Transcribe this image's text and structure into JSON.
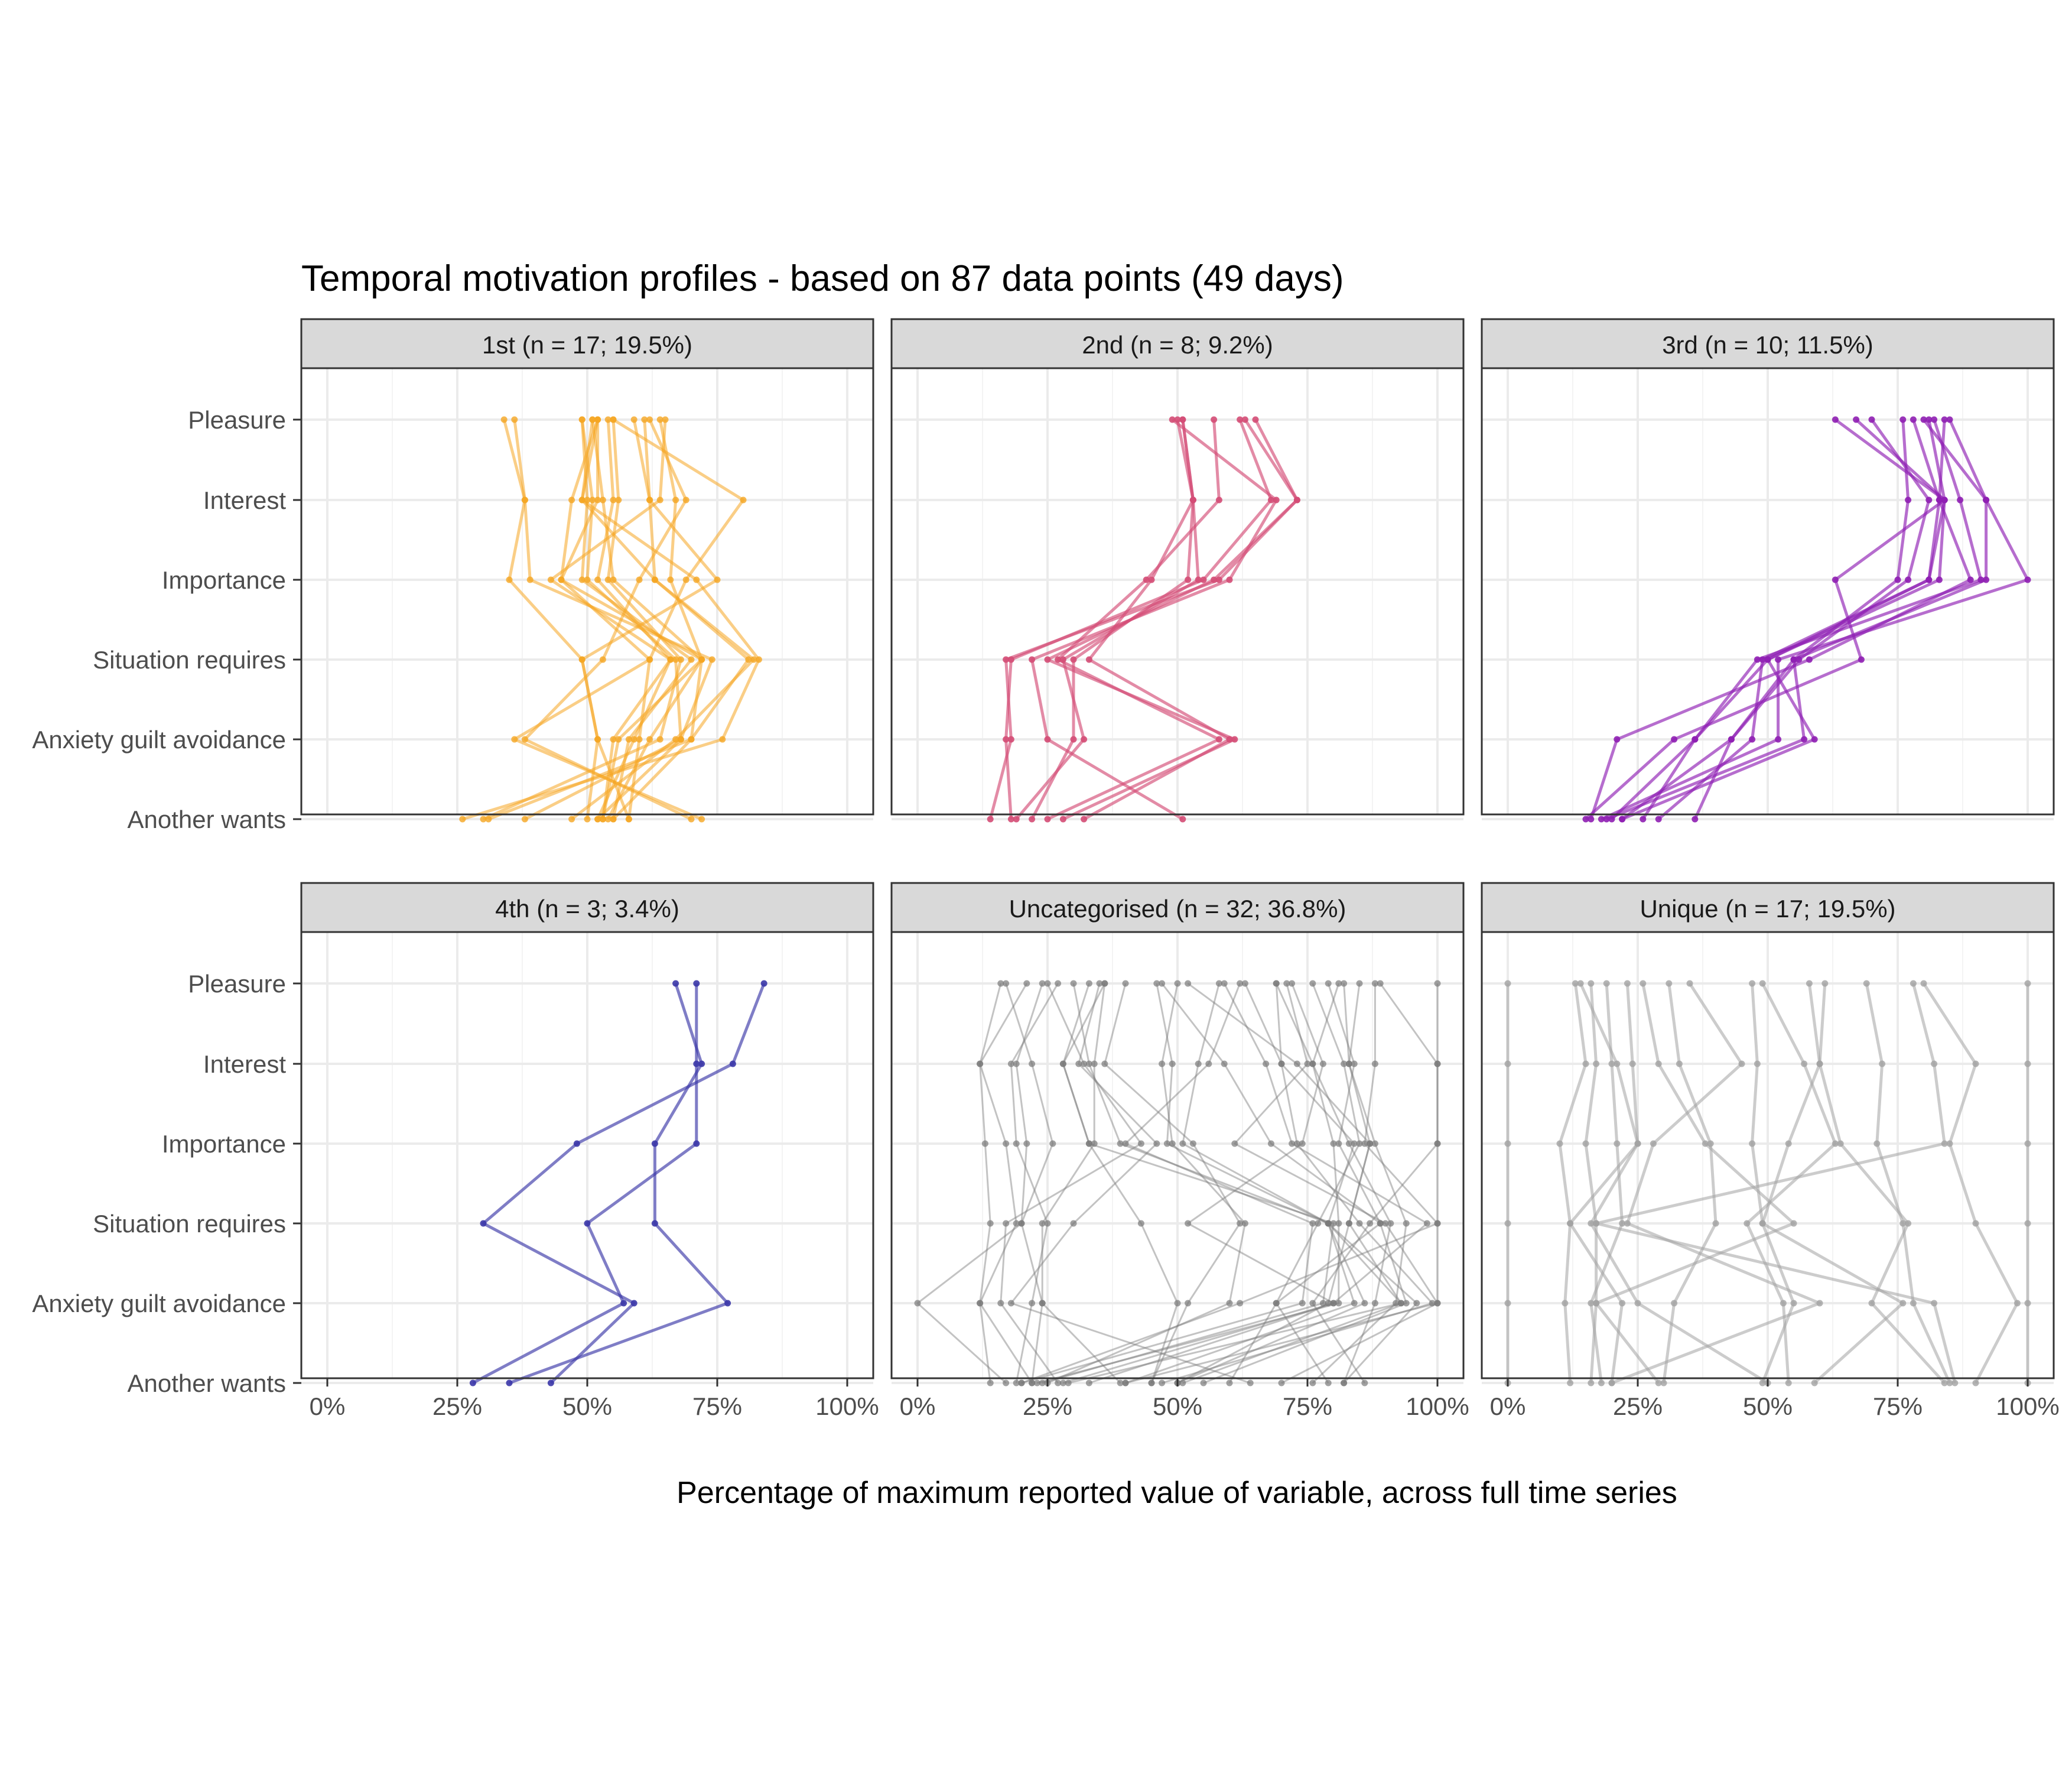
{
  "chart_data": {
    "type": "line",
    "title": "Temporal motivation profiles - based on 87 data points (49 days)",
    "xlabel": "Percentage of maximum reported value of variable, across full time series",
    "ylabel": "",
    "xlim": [
      0,
      100
    ],
    "x_ticks": [
      "0%",
      "25%",
      "50%",
      "75%",
      "100%"
    ],
    "x_tick_values": [
      0,
      25,
      50,
      75,
      100
    ],
    "y_categories": [
      "Pleasure",
      "Interest",
      "Importance",
      "Situation requires",
      "Anxiety guilt avoidance",
      "Another wants"
    ],
    "grid": true,
    "colors": {
      "panel_strip": "#d9d9d9",
      "grid": "#ebebeb"
    },
    "panels": [
      {
        "label": "1st (n = 17; 19.5%)",
        "color": "#f5a623",
        "series": [
          [
            51,
            53,
            55,
            72,
            56,
            53
          ],
          [
            54,
            55,
            52,
            66,
            59,
            52
          ],
          [
            49,
            50,
            49,
            70,
            58,
            55
          ],
          [
            52,
            52,
            45,
            72,
            62,
            54
          ],
          [
            36,
            38,
            35,
            49,
            52,
            50
          ],
          [
            52,
            47,
            45,
            62,
            60,
            58
          ],
          [
            55,
            56,
            54,
            68,
            64,
            30
          ],
          [
            59,
            62,
            63,
            81,
            70,
            55
          ],
          [
            64,
            67,
            66,
            72,
            70,
            31
          ],
          [
            65,
            64,
            43,
            66,
            55,
            53
          ],
          [
            34,
            38,
            39,
            74,
            68,
            52
          ],
          [
            49,
            51,
            50,
            67,
            68,
            38
          ],
          [
            52,
            49,
            71,
            83,
            76,
            26
          ],
          [
            51,
            49,
            63,
            82,
            67,
            47
          ],
          [
            61,
            62,
            75,
            49,
            52,
            58
          ],
          [
            62,
            69,
            60,
            53,
            38,
            70
          ],
          [
            55,
            80,
            69,
            62,
            36,
            72
          ]
        ]
      },
      {
        "label": "2nd (n = 8; 9.2%)",
        "color": "#d44d76",
        "series": [
          [
            51,
            53,
            54,
            28,
            32,
            19
          ],
          [
            51,
            53,
            52,
            30,
            30,
            22
          ],
          [
            63,
            73,
            58,
            17,
            18,
            14
          ],
          [
            62,
            68,
            55,
            18,
            17,
            18
          ],
          [
            50,
            53,
            45,
            33,
            60,
            32
          ],
          [
            57,
            58,
            44,
            27,
            58,
            25
          ],
          [
            65,
            73,
            57,
            25,
            61,
            28
          ],
          [
            49,
            69,
            60,
            22,
            25,
            51
          ]
        ]
      },
      {
        "label": "3rd (n = 10; 11.5%)",
        "color": "#8f1fb3",
        "series": [
          [
            81,
            84,
            83,
            50,
            59,
            22
          ],
          [
            78,
            83,
            81,
            49,
            47,
            29
          ],
          [
            80,
            92,
            92,
            55,
            57,
            19
          ],
          [
            82,
            87,
            91,
            48,
            36,
            20
          ],
          [
            85,
            92,
            100,
            52,
            52,
            18
          ],
          [
            76,
            77,
            75,
            55,
            43,
            22
          ],
          [
            84,
            83,
            89,
            58,
            21,
            16
          ],
          [
            63,
            84,
            63,
            68,
            32,
            15
          ],
          [
            67,
            84,
            81,
            50,
            36,
            26
          ],
          [
            70,
            81,
            77,
            56,
            43,
            36
          ]
        ]
      },
      {
        "label": "4th (n = 3; 3.4%)",
        "color": "#3b37a8",
        "series": [
          [
            71,
            71,
            71,
            50,
            57,
            28
          ],
          [
            67,
            72,
            63,
            63,
            77,
            35
          ],
          [
            84,
            78,
            48,
            30,
            59,
            43
          ]
        ]
      },
      {
        "label": "Uncategorised (n = 32; 36.8%)",
        "color": "#7a7a7a",
        "series": [
          [
            16,
            12,
            13,
            14,
            12,
            14
          ],
          [
            24,
            19,
            21,
            20,
            24,
            22
          ],
          [
            27,
            18,
            19,
            25,
            22,
            19
          ],
          [
            30,
            33,
            39,
            79,
            96,
            82
          ],
          [
            33,
            28,
            33,
            80,
            78,
            24
          ],
          [
            46,
            49,
            48,
            79,
            84,
            40
          ],
          [
            50,
            47,
            49,
            63,
            60,
            25
          ],
          [
            62,
            56,
            40,
            76,
            74,
            20
          ],
          [
            69,
            70,
            73,
            85,
            99,
            47
          ],
          [
            82,
            83,
            87,
            83,
            93,
            29
          ],
          [
            88,
            88,
            86,
            100,
            62,
            20
          ],
          [
            35,
            31,
            46,
            30,
            18,
            64
          ],
          [
            25,
            32,
            43,
            17,
            16,
            27
          ],
          [
            47,
            59,
            68,
            89,
            69,
            79
          ],
          [
            36,
            28,
            33,
            43,
            50,
            45
          ],
          [
            40,
            36,
            53,
            62,
            52,
            45
          ],
          [
            69,
            76,
            80,
            81,
            81,
            23
          ],
          [
            52,
            73,
            87,
            83,
            79,
            50
          ],
          [
            59,
            67,
            72,
            98,
            80,
            28
          ],
          [
            63,
            70,
            84,
            79,
            93,
            51
          ],
          [
            71,
            75,
            61,
            90,
            100,
            40
          ],
          [
            72,
            78,
            74,
            52,
            80,
            33
          ],
          [
            81,
            76,
            83,
            91,
            88,
            82
          ],
          [
            85,
            83,
            88,
            94,
            92,
            76
          ],
          [
            89,
            100,
            100,
            87,
            76,
            86
          ],
          [
            100,
            100,
            100,
            100,
            100,
            70
          ],
          [
            17,
            22,
            26,
            20,
            0,
            17
          ],
          [
            21,
            12,
            17,
            19,
            12,
            22
          ],
          [
            76,
            82,
            85,
            77,
            69,
            60
          ],
          [
            36,
            34,
            34,
            24,
            24,
            39
          ],
          [
            58,
            54,
            51,
            79,
            86,
            50
          ],
          [
            79,
            84,
            81,
            89,
            94,
            55
          ]
        ]
      },
      {
        "label": "Unique (n = 17; 19.5%)",
        "color": "#a3a3a3",
        "series": [
          [
            0,
            0,
            0,
            0,
            0,
            0
          ],
          [
            13,
            15,
            10,
            12,
            11,
            12
          ],
          [
            16,
            17,
            15,
            17,
            17,
            16
          ],
          [
            19,
            20,
            21,
            22,
            16,
            18
          ],
          [
            23,
            24,
            25,
            12,
            22,
            20
          ],
          [
            31,
            33,
            39,
            40,
            32,
            30
          ],
          [
            47,
            48,
            47,
            49,
            55,
            49
          ],
          [
            69,
            72,
            71,
            76,
            78,
            85
          ],
          [
            80,
            90,
            85,
            90,
            98,
            90
          ],
          [
            100,
            100,
            100,
            100,
            100,
            100
          ],
          [
            49,
            57,
            63,
            46,
            53,
            54
          ],
          [
            14,
            21,
            25,
            16,
            25,
            50
          ],
          [
            58,
            60,
            64,
            77,
            70,
            84
          ],
          [
            78,
            82,
            84,
            17,
            82,
            86
          ],
          [
            26,
            29,
            38,
            55,
            17,
            29
          ],
          [
            61,
            60,
            54,
            49,
            76,
            59
          ],
          [
            35,
            45,
            28,
            23,
            60,
            20
          ]
        ]
      }
    ]
  }
}
